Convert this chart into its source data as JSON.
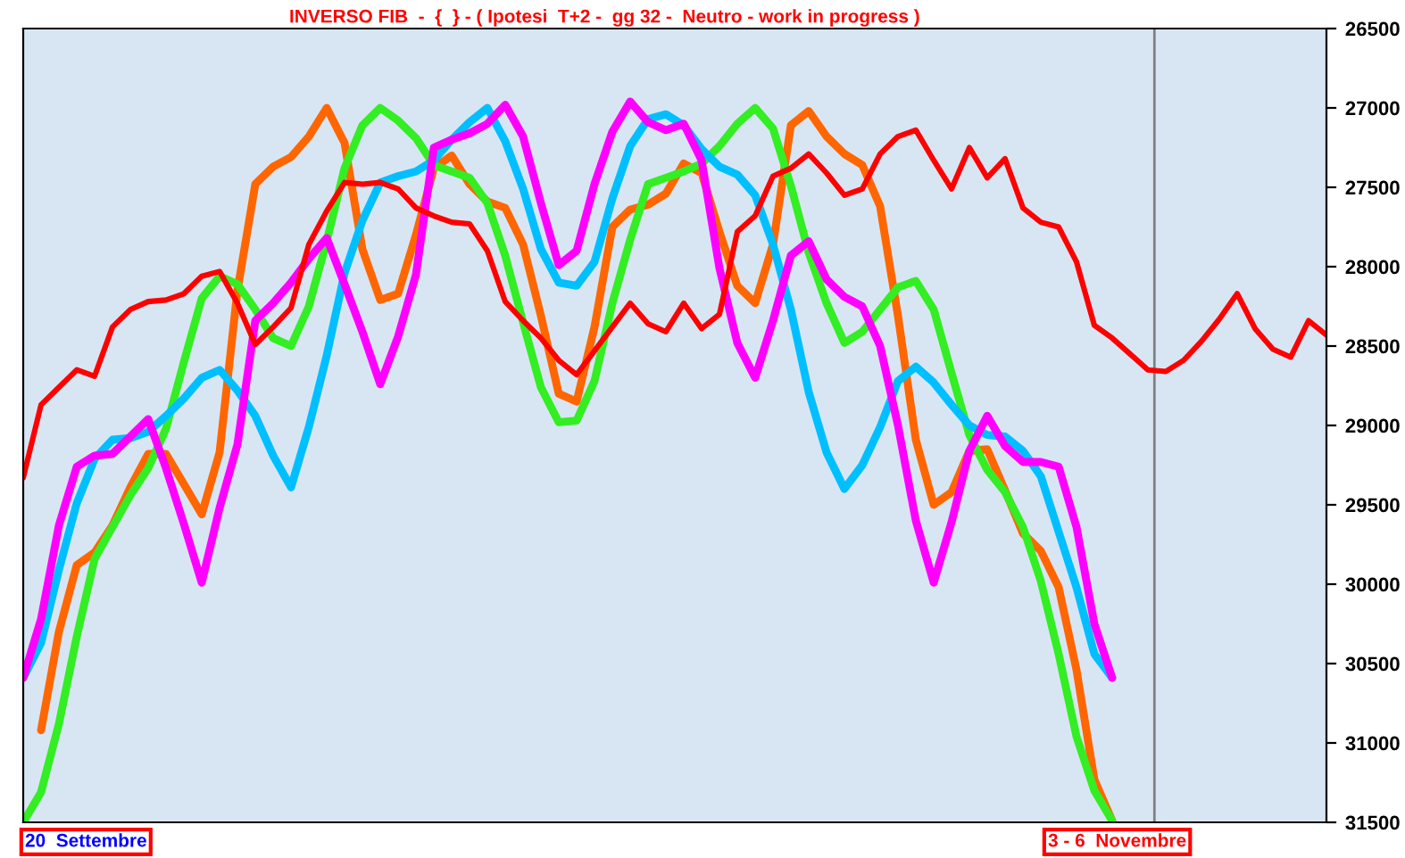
{
  "chart_data": {
    "type": "line",
    "title": "INVERSO FIB  -  {  } - ( Ipotesi  T+2 -  gg 32 -  Neutro - work in progress )",
    "annotations": [
      "20  Settembre",
      "3 - 6  Novembre"
    ],
    "categories": [
      null,
      null,
      null,
      null,
      null,
      null,
      null,
      null,
      null,
      null,
      null,
      null,
      null,
      null,
      null,
      null,
      null,
      null,
      null,
      null,
      null,
      null,
      null,
      null,
      null,
      null,
      null,
      null,
      null,
      null,
      null,
      null,
      null,
      null,
      null,
      null,
      null,
      null,
      null,
      null,
      null,
      null,
      null,
      null,
      null,
      null,
      null,
      null,
      null,
      null,
      null,
      null,
      null,
      null,
      null,
      null,
      null,
      null,
      null,
      null,
      null,
      null,
      null,
      null,
      null,
      null,
      null,
      null,
      null,
      null,
      null,
      null,
      null,
      null
    ],
    "tick_labels": "y",
    "ylim": [
      31500,
      26500
    ],
    "yticks": [
      26500,
      27000,
      27500,
      28000,
      28500,
      29000,
      29500,
      30000,
      30500,
      31000,
      31500
    ],
    "marker": "none",
    "line_style": "solid",
    "series": [
      {
        "color": "#ff6600",
        "values": [
          null,
          30920,
          30300,
          29880,
          29800,
          29630,
          29390,
          29180,
          29180,
          29370,
          29560,
          29170,
          28150,
          27480,
          27370,
          27310,
          27180,
          27000,
          27220,
          27890,
          28210,
          28170,
          27800,
          27380,
          27300,
          27480,
          27590,
          27630,
          27860,
          28310,
          28800,
          28850,
          28380,
          27750,
          27640,
          27610,
          27540,
          27350,
          27410,
          27780,
          28120,
          28230,
          27860,
          27110,
          27020,
          27180,
          27290,
          27360,
          27620,
          28310,
          29090,
          29500,
          29420,
          29160,
          29150,
          29410,
          29680,
          29790,
          30020,
          30540,
          31230,
          31490,
          null,
          null,
          null,
          null,
          null,
          null,
          null,
          null,
          null,
          null,
          null,
          null
        ]
      },
      {
        "color": "#33ee22",
        "values": [
          31500,
          31310,
          30880,
          30330,
          29840,
          29640,
          29440,
          29270,
          29020,
          28600,
          28200,
          28060,
          28110,
          28270,
          28450,
          28500,
          28250,
          27840,
          27380,
          27110,
          27000,
          27080,
          27190,
          27360,
          27400,
          27440,
          27600,
          27930,
          28350,
          28760,
          28980,
          28970,
          28720,
          28230,
          27830,
          27480,
          27440,
          27400,
          27350,
          27240,
          27100,
          27000,
          27130,
          27490,
          27910,
          28230,
          28480,
          28410,
          28270,
          28130,
          28090,
          28270,
          28670,
          29060,
          29280,
          29420,
          29640,
          29980,
          30440,
          30960,
          31300,
          31490,
          null,
          null,
          null,
          null,
          null,
          null,
          null,
          null,
          null,
          null,
          null,
          null
        ]
      },
      {
        "color": "#00bfff",
        "values": [
          30590,
          30370,
          29910,
          29490,
          29210,
          29090,
          29080,
          29040,
          28940,
          28830,
          28700,
          28650,
          28780,
          28940,
          29190,
          29390,
          29010,
          28560,
          28040,
          27710,
          27470,
          27430,
          27400,
          27330,
          27200,
          27090,
          27000,
          27210,
          27510,
          27890,
          28100,
          28120,
          27970,
          27570,
          27240,
          27070,
          27040,
          27110,
          27260,
          27370,
          27420,
          27550,
          27860,
          28270,
          28790,
          29170,
          29400,
          29250,
          29010,
          28720,
          28630,
          28730,
          28870,
          29000,
          29060,
          29070,
          29160,
          29320,
          29670,
          30020,
          30440,
          30590,
          null,
          null,
          null,
          null,
          null,
          null,
          null,
          null,
          null,
          null,
          null,
          null
        ]
      },
      {
        "color": "#ff00ff",
        "values": [
          30590,
          30220,
          29630,
          29260,
          29190,
          29180,
          29070,
          28960,
          29270,
          29620,
          29990,
          29520,
          29120,
          28340,
          28230,
          28100,
          27950,
          27820,
          28110,
          28410,
          28740,
          28440,
          28050,
          27250,
          27200,
          27160,
          27100,
          26980,
          27180,
          27600,
          27990,
          27900,
          27480,
          27150,
          26960,
          27090,
          27140,
          27100,
          27330,
          28010,
          28480,
          28700,
          28340,
          27930,
          27840,
          28080,
          28190,
          28250,
          28500,
          29000,
          29600,
          29990,
          29610,
          29160,
          28940,
          29130,
          29230,
          29230,
          29260,
          29640,
          30250,
          30590,
          null,
          null,
          null,
          null,
          null,
          null,
          null,
          null,
          null,
          null,
          null,
          null
        ]
      },
      {
        "color": "#ff0000",
        "values": [
          29330,
          28870,
          28760,
          28650,
          28690,
          28380,
          28270,
          28220,
          28210,
          28170,
          28060,
          28030,
          28230,
          28490,
          28380,
          28260,
          27860,
          27650,
          27470,
          27480,
          27470,
          27510,
          27630,
          27680,
          27720,
          27730,
          27900,
          28220,
          28340,
          28450,
          28590,
          28680,
          28530,
          28380,
          28230,
          28360,
          28410,
          28230,
          28390,
          28300,
          27780,
          27680,
          27430,
          27380,
          27290,
          27410,
          27550,
          27510,
          27290,
          27180,
          27140,
          27330,
          27510,
          27250,
          27440,
          27320,
          27630,
          27720,
          27750,
          27970,
          28370,
          28450,
          28550,
          28650,
          28660,
          28590,
          28470,
          28330,
          28170,
          28390,
          28520,
          28570,
          28340,
          28430
        ]
      }
    ]
  }
}
